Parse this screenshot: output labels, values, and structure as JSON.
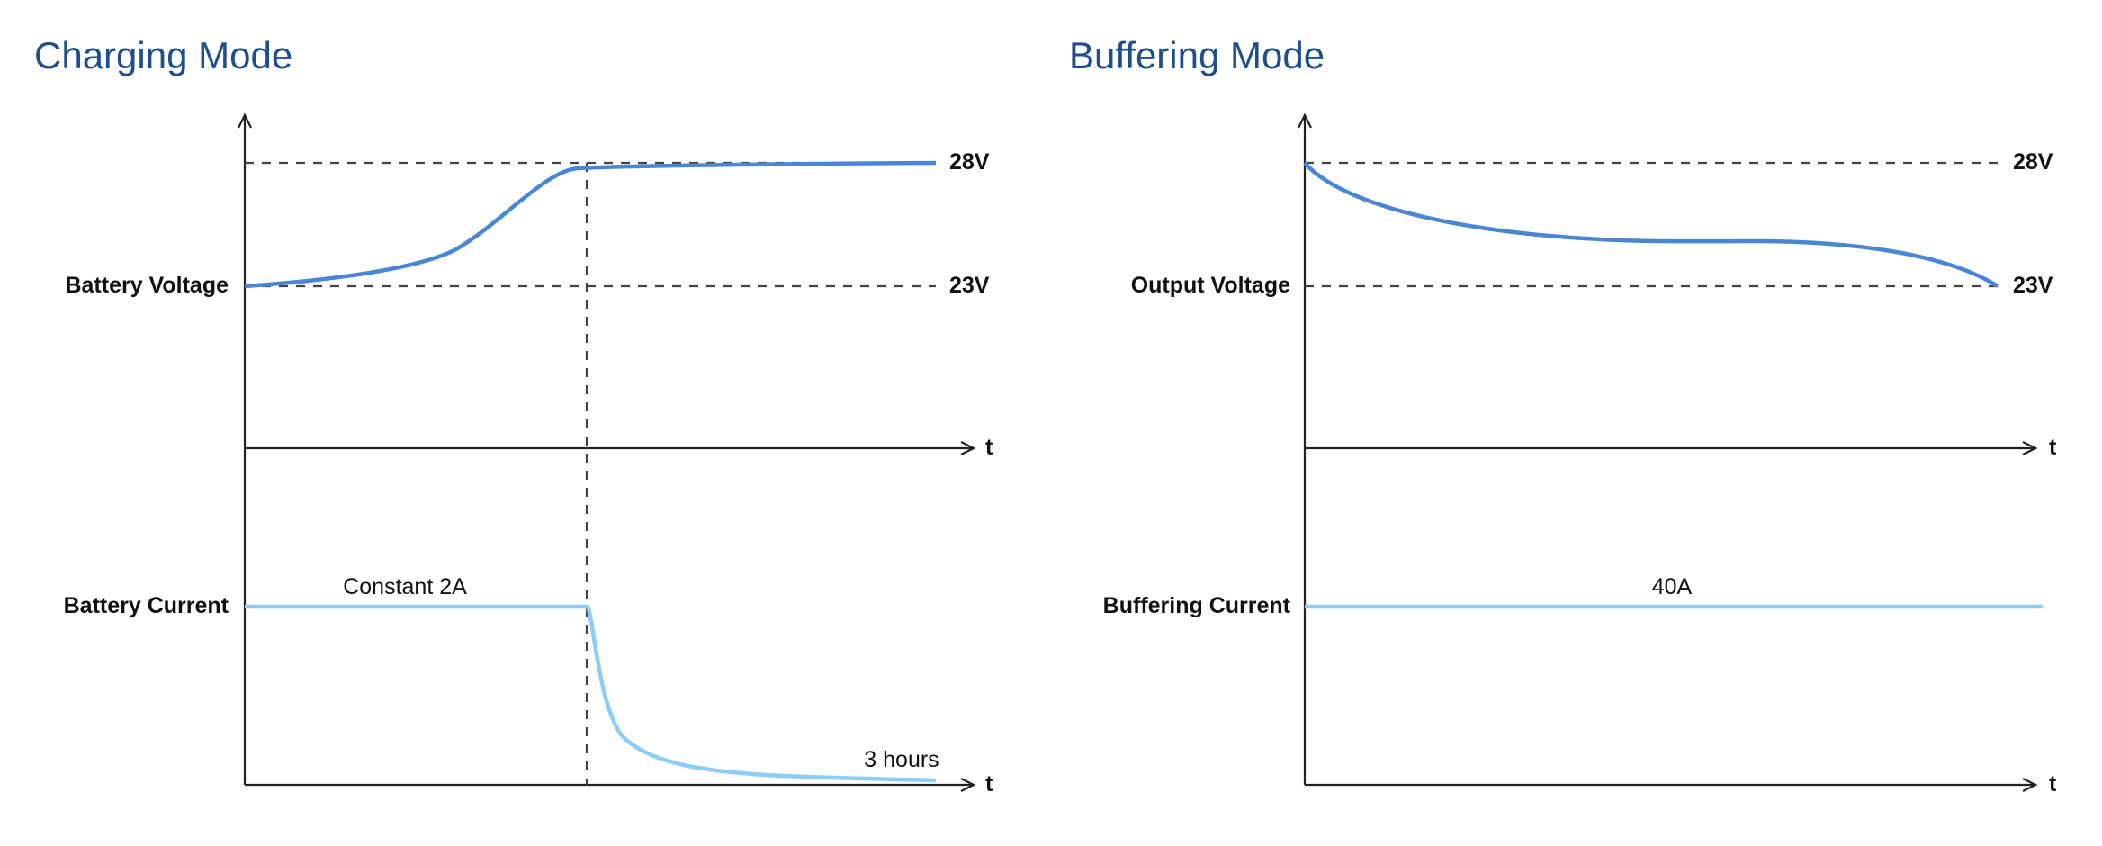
{
  "charging": {
    "title": "Charging Mode",
    "voltage_label": "Battery Voltage",
    "current_label": "Battery Current",
    "v_high": "28V",
    "v_low": "23V",
    "axis_t_top": "t",
    "axis_t_bottom": "t",
    "current_note": "Constant 2A",
    "time_note": "3 hours"
  },
  "buffering": {
    "title": "Buffering Mode",
    "voltage_label": "Output Voltage",
    "current_label": "Buffering Current",
    "v_high": "28V",
    "v_low": "23V",
    "axis_t_top": "t",
    "axis_t_bottom": "t",
    "current_note": "40A"
  },
  "colors": {
    "voltage_curve": "#4a86d6",
    "current_curve": "#8ccdf5",
    "title": "#1f4e8c",
    "axis": "#222222",
    "dashed": "#444444"
  },
  "icons": [
    "arrow-up-icon",
    "arrow-right-icon"
  ]
}
